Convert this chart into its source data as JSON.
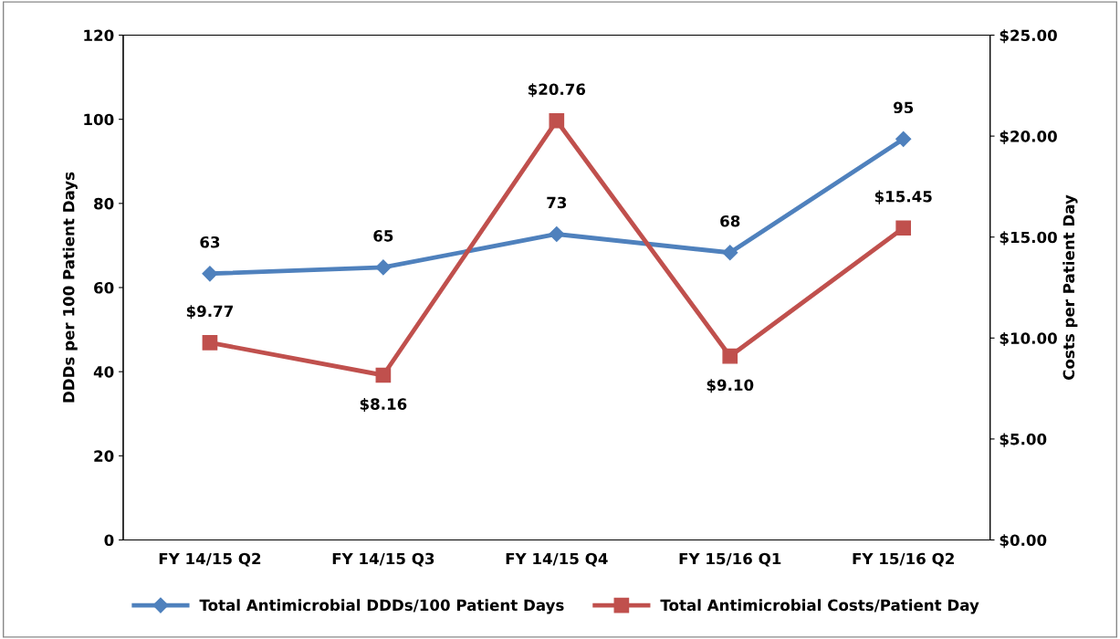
{
  "chart_data": {
    "type": "line",
    "categories": [
      "FY 14/15 Q2",
      "FY 14/15 Q3",
      "FY 14/15 Q4",
      "FY 15/16 Q1",
      "FY 15/16 Q2"
    ],
    "ylabel": "DDDs per 100 Patient Days",
    "y2label": "Costs per Patient Day",
    "ylim": [
      0,
      120
    ],
    "yticks": [
      0,
      20,
      40,
      60,
      80,
      100,
      120
    ],
    "y2lim": [
      0,
      25
    ],
    "y2ticks": [
      {
        "value": 0,
        "label": "$0.00"
      },
      {
        "value": 5,
        "label": "$5.00"
      },
      {
        "value": 10,
        "label": "$10.00"
      },
      {
        "value": 15,
        "label": "$15.00"
      },
      {
        "value": 20,
        "label": "$20.00"
      },
      {
        "value": 25,
        "label": "$25.00"
      }
    ],
    "series": [
      {
        "name": "Total Antimicrobial DDDs/100 Patient Days",
        "color": "#4f81bd",
        "marker": "diamond",
        "values": [
          63.3,
          64.8,
          72.7,
          68.3,
          95.3
        ],
        "value_labels": [
          "63",
          "65",
          "73",
          "68",
          "95"
        ]
      },
      {
        "name": "Total Antimicrobial Costs/Patient Day",
        "color": "#c0504d",
        "marker": "square",
        "axis": "y2",
        "values": [
          9.77,
          8.16,
          20.76,
          9.1,
          15.45
        ],
        "value_labels": [
          "$9.77",
          "$8.16",
          "$20.76",
          "$9.10",
          "$15.45"
        ]
      }
    ],
    "grid": false,
    "legend": "bottom",
    "line_style": "solid"
  }
}
